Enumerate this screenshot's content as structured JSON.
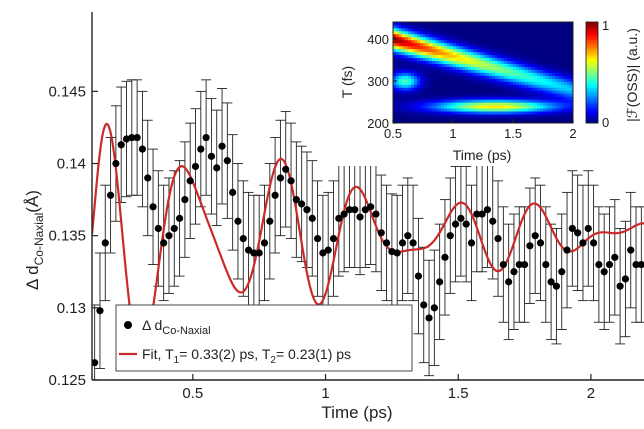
{
  "chart_data": [
    {
      "type": "scatter",
      "xlabel": "Time (ps)",
      "ylabel": "Δ d",
      "ylabel_sub": "Co-Naxial",
      "ylabel_unit": "(Å)",
      "xlim": [
        0.12,
        2.2
      ],
      "ylim": [
        0.125,
        0.1505
      ],
      "xticks": [
        "0.5",
        "1",
        "1.5",
        "2"
      ],
      "xtick_values": [
        0.5,
        1,
        1.5,
        2
      ],
      "yticks": [
        "0.125",
        "0.13",
        "0.135",
        "0.14",
        "0.145"
      ],
      "ytick_values": [
        0.125,
        0.13,
        0.135,
        0.14,
        0.145
      ],
      "series": [
        {
          "name": "Δ d",
          "name_sub": "Co-Naxial",
          "marker": "circle",
          "color": "#000000",
          "points": [
            [
              0.13,
              0.1262,
              0.004
            ],
            [
              0.15,
              0.1298,
              0.004
            ],
            [
              0.17,
              0.1345,
              0.004
            ],
            [
              0.19,
              0.1378,
              0.004
            ],
            [
              0.21,
              0.14,
              0.004
            ],
            [
              0.23,
              0.1413,
              0.004
            ],
            [
              0.25,
              0.1417,
              0.004
            ],
            [
              0.27,
              0.1418,
              0.004
            ],
            [
              0.29,
              0.1418,
              0.004
            ],
            [
              0.31,
              0.141,
              0.004
            ],
            [
              0.33,
              0.139,
              0.004
            ],
            [
              0.35,
              0.137,
              0.004
            ],
            [
              0.37,
              0.1355,
              0.004
            ],
            [
              0.39,
              0.1345,
              0.004
            ],
            [
              0.41,
              0.135,
              0.004
            ],
            [
              0.43,
              0.1355,
              0.004
            ],
            [
              0.45,
              0.1362,
              0.004
            ],
            [
              0.47,
              0.1375,
              0.004
            ],
            [
              0.49,
              0.1388,
              0.004
            ],
            [
              0.51,
              0.1398,
              0.004
            ],
            [
              0.53,
              0.141,
              0.004
            ],
            [
              0.55,
              0.1418,
              0.004
            ],
            [
              0.57,
              0.1405,
              0.004
            ],
            [
              0.59,
              0.1397,
              0.004
            ],
            [
              0.61,
              0.1412,
              0.004
            ],
            [
              0.63,
              0.1402,
              0.004
            ],
            [
              0.65,
              0.138,
              0.004
            ],
            [
              0.67,
              0.136,
              0.004
            ],
            [
              0.69,
              0.1348,
              0.004
            ],
            [
              0.71,
              0.134,
              0.004
            ],
            [
              0.73,
              0.1338,
              0.004
            ],
            [
              0.75,
              0.1338,
              0.004
            ],
            [
              0.77,
              0.1345,
              0.004
            ],
            [
              0.79,
              0.136,
              0.004
            ],
            [
              0.81,
              0.1378,
              0.004
            ],
            [
              0.83,
              0.139,
              0.004
            ],
            [
              0.85,
              0.1396,
              0.004
            ],
            [
              0.87,
              0.1388,
              0.004
            ],
            [
              0.89,
              0.1375,
              0.004
            ],
            [
              0.91,
              0.1372,
              0.004
            ],
            [
              0.93,
              0.1368,
              0.004
            ],
            [
              0.95,
              0.1362,
              0.004
            ],
            [
              0.97,
              0.1348,
              0.004
            ],
            [
              0.99,
              0.1338,
              0.004
            ],
            [
              1.01,
              0.134,
              0.004
            ],
            [
              1.03,
              0.1348,
              0.004
            ],
            [
              1.05,
              0.1362,
              0.004
            ],
            [
              1.07,
              0.1365,
              0.004
            ],
            [
              1.09,
              0.1368,
              0.004
            ],
            [
              1.11,
              0.1368,
              0.004
            ],
            [
              1.13,
              0.1363,
              0.004
            ],
            [
              1.15,
              0.1368,
              0.004
            ],
            [
              1.17,
              0.137,
              0.004
            ],
            [
              1.19,
              0.1365,
              0.004
            ],
            [
              1.21,
              0.1352,
              0.004
            ],
            [
              1.23,
              0.1345,
              0.004
            ],
            [
              1.25,
              0.1339,
              0.004
            ],
            [
              1.27,
              0.1338,
              0.004
            ],
            [
              1.29,
              0.1345,
              0.004
            ],
            [
              1.31,
              0.135,
              0.004
            ],
            [
              1.33,
              0.1345,
              0.004
            ],
            [
              1.35,
              0.1322,
              0.004
            ],
            [
              1.37,
              0.1302,
              0.004
            ],
            [
              1.39,
              0.1293,
              0.004
            ],
            [
              1.41,
              0.13,
              0.004
            ],
            [
              1.43,
              0.1318,
              0.004
            ],
            [
              1.45,
              0.1335,
              0.004
            ],
            [
              1.47,
              0.135,
              0.004
            ],
            [
              1.49,
              0.1358,
              0.004
            ],
            [
              1.51,
              0.1362,
              0.004
            ],
            [
              1.53,
              0.1358,
              0.004
            ],
            [
              1.55,
              0.1345,
              0.004
            ],
            [
              1.57,
              0.1365,
              0.004
            ],
            [
              1.59,
              0.1365,
              0.004
            ],
            [
              1.61,
              0.1368,
              0.004
            ],
            [
              1.63,
              0.136,
              0.004
            ],
            [
              1.65,
              0.1348,
              0.004
            ],
            [
              1.67,
              0.133,
              0.004
            ],
            [
              1.69,
              0.1318,
              0.004
            ],
            [
              1.71,
              0.1325,
              0.004
            ],
            [
              1.73,
              0.133,
              0.004
            ],
            [
              1.75,
              0.133,
              0.004
            ],
            [
              1.77,
              0.1343,
              0.004
            ],
            [
              1.79,
              0.135,
              0.004
            ],
            [
              1.81,
              0.1345,
              0.004
            ],
            [
              1.83,
              0.133,
              0.004
            ],
            [
              1.85,
              0.1318,
              0.004
            ],
            [
              1.87,
              0.1315,
              0.004
            ],
            [
              1.89,
              0.1325,
              0.004
            ],
            [
              1.91,
              0.134,
              0.004
            ],
            [
              1.93,
              0.1355,
              0.004
            ],
            [
              1.95,
              0.1352,
              0.004
            ],
            [
              1.97,
              0.1345,
              0.004
            ],
            [
              1.99,
              0.1355,
              0.004
            ],
            [
              2.01,
              0.1345,
              0.004
            ],
            [
              2.03,
              0.133,
              0.004
            ],
            [
              2.05,
              0.1325,
              0.004
            ],
            [
              2.07,
              0.133,
              0.004
            ],
            [
              2.09,
              0.1335,
              0.004
            ],
            [
              2.11,
              0.1315,
              0.004
            ],
            [
              2.13,
              0.132,
              0.004
            ],
            [
              2.15,
              0.134,
              0.004
            ],
            [
              2.17,
              0.133,
              0.004
            ],
            [
              2.19,
              0.133,
              0.004
            ]
          ]
        },
        {
          "name": "Fit, T",
          "name_sub_1": "1",
          "name_mid": "= 0.33(2) ps, T",
          "name_sub_2": "2",
          "name_end": "= 0.23(1) ps",
          "type": "line",
          "color": "#cc2a2a",
          "model": {
            "baseline": 0.1351,
            "t0": 0.12,
            "rise_tau": 0.04,
            "A1": 0.0088,
            "T1": 0.33,
            "phi1": -0.72,
            "tau1": 0.9,
            "A2": 0.0026,
            "T2": 0.23,
            "phi2": -1.2,
            "tau2": 1.6
          }
        }
      ],
      "legend": {
        "position": "bottom-left"
      }
    },
    {
      "type": "heatmap",
      "xlabel": "Time (ps)",
      "ylabel": "T (fs)",
      "colorbar_label": "|ℱ(OSS)| (a.u.)",
      "xlim": [
        0.5,
        2
      ],
      "ylim": [
        200,
        440
      ],
      "xticks": [
        "0.5",
        "1",
        "1.5",
        "2"
      ],
      "xtick_values": [
        0.5,
        1,
        1.5,
        2
      ],
      "yticks": [
        "200",
        "300",
        "400"
      ],
      "ytick_values": [
        200,
        300,
        400
      ],
      "colorbar_ticks": [
        "0",
        "1"
      ],
      "colormap": "jet",
      "components": [
        {
          "peak": 1.0,
          "center": 400,
          "drift": -80,
          "width": 25,
          "decay": 1.3
        },
        {
          "peak": 0.65,
          "center": 240,
          "drift": 0,
          "width": 15,
          "decay": 3.5,
          "x_center": 1.35,
          "x_width": 0.5
        },
        {
          "peak": 0.45,
          "center": 300,
          "drift": 0,
          "width": 20,
          "decay": 3.0,
          "x_center": 0.6,
          "x_width": 0.12
        }
      ]
    }
  ]
}
